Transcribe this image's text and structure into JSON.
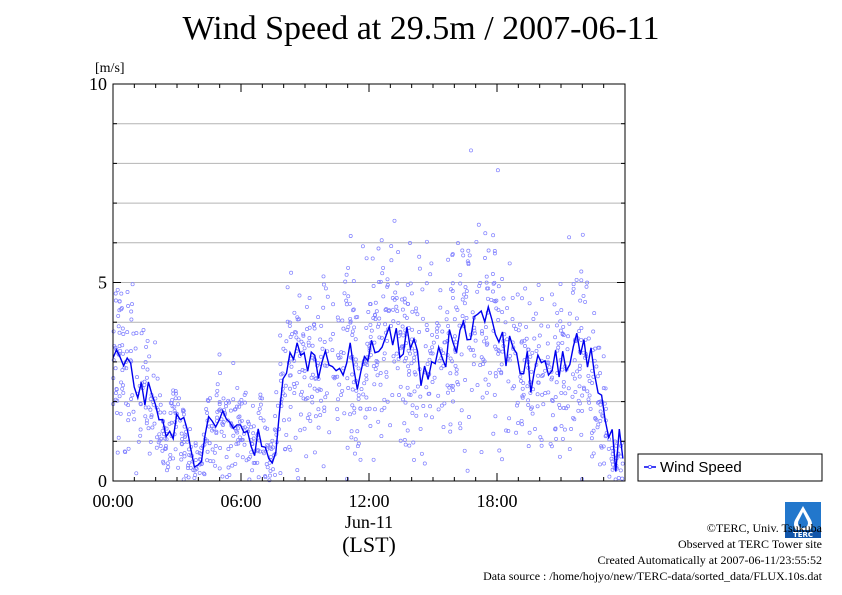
{
  "chart_data": {
    "type": "scatter",
    "title": "Wind Speed at 29.5m / 2007-06-11",
    "ylabel": "[m/s]",
    "xlabel": "(LST)",
    "date_label": "Jun-11",
    "ylim": [
      0,
      10
    ],
    "y_ticks": [
      "0",
      "5",
      "10"
    ],
    "x_ticks": [
      "00:00",
      "06:00",
      "12:00",
      "18:00"
    ],
    "xlim_hours": [
      0,
      24
    ],
    "grid": true,
    "legend": {
      "entries": [
        "Wind Speed"
      ],
      "placement": "right"
    },
    "colors": {
      "points": "#8080ff",
      "line": "#0000ee"
    },
    "series": [
      {
        "name": "Wind Speed",
        "x": [
          0.0,
          0.5,
          1.0,
          1.5,
          2.0,
          2.5,
          3.0,
          3.5,
          4.0,
          4.5,
          5.0,
          5.5,
          6.0,
          6.5,
          7.0,
          7.5,
          8.0,
          8.5,
          9.0,
          9.5,
          10.0,
          10.5,
          11.0,
          11.5,
          12.0,
          12.5,
          13.0,
          13.5,
          14.0,
          14.5,
          15.0,
          15.5,
          16.0,
          16.5,
          17.0,
          17.5,
          18.0,
          18.5,
          19.0,
          19.5,
          20.0,
          20.5,
          21.0,
          21.5,
          22.0,
          22.5,
          23.0,
          23.5
        ],
        "values": [
          3.5,
          2.8,
          2.6,
          2.2,
          1.8,
          1.0,
          1.5,
          0.9,
          0.3,
          1.4,
          1.6,
          1.2,
          1.5,
          1.0,
          1.4,
          0.6,
          2.6,
          3.3,
          3.0,
          2.7,
          3.1,
          2.8,
          3.2,
          2.6,
          3.5,
          3.3,
          3.7,
          3.3,
          3.2,
          2.8,
          3.0,
          3.2,
          3.5,
          3.8,
          4.0,
          4.3,
          3.8,
          3.0,
          3.2,
          2.6,
          3.0,
          2.8,
          3.0,
          3.1,
          3.3,
          2.5,
          1.8,
          0.5
        ]
      }
    ]
  },
  "legend_text": "Wind Speed",
  "footer": {
    "copyright": "©TERC, Univ. Tsukuba",
    "observed": "Observed at TERC Tower site",
    "created": "Created Automatically at 2007-06-11/23:55:52",
    "source": "Data source : /home/hojyo/new/TERC-data/sorted_data/FLUX.10s.dat"
  },
  "logo_text": "TERC"
}
